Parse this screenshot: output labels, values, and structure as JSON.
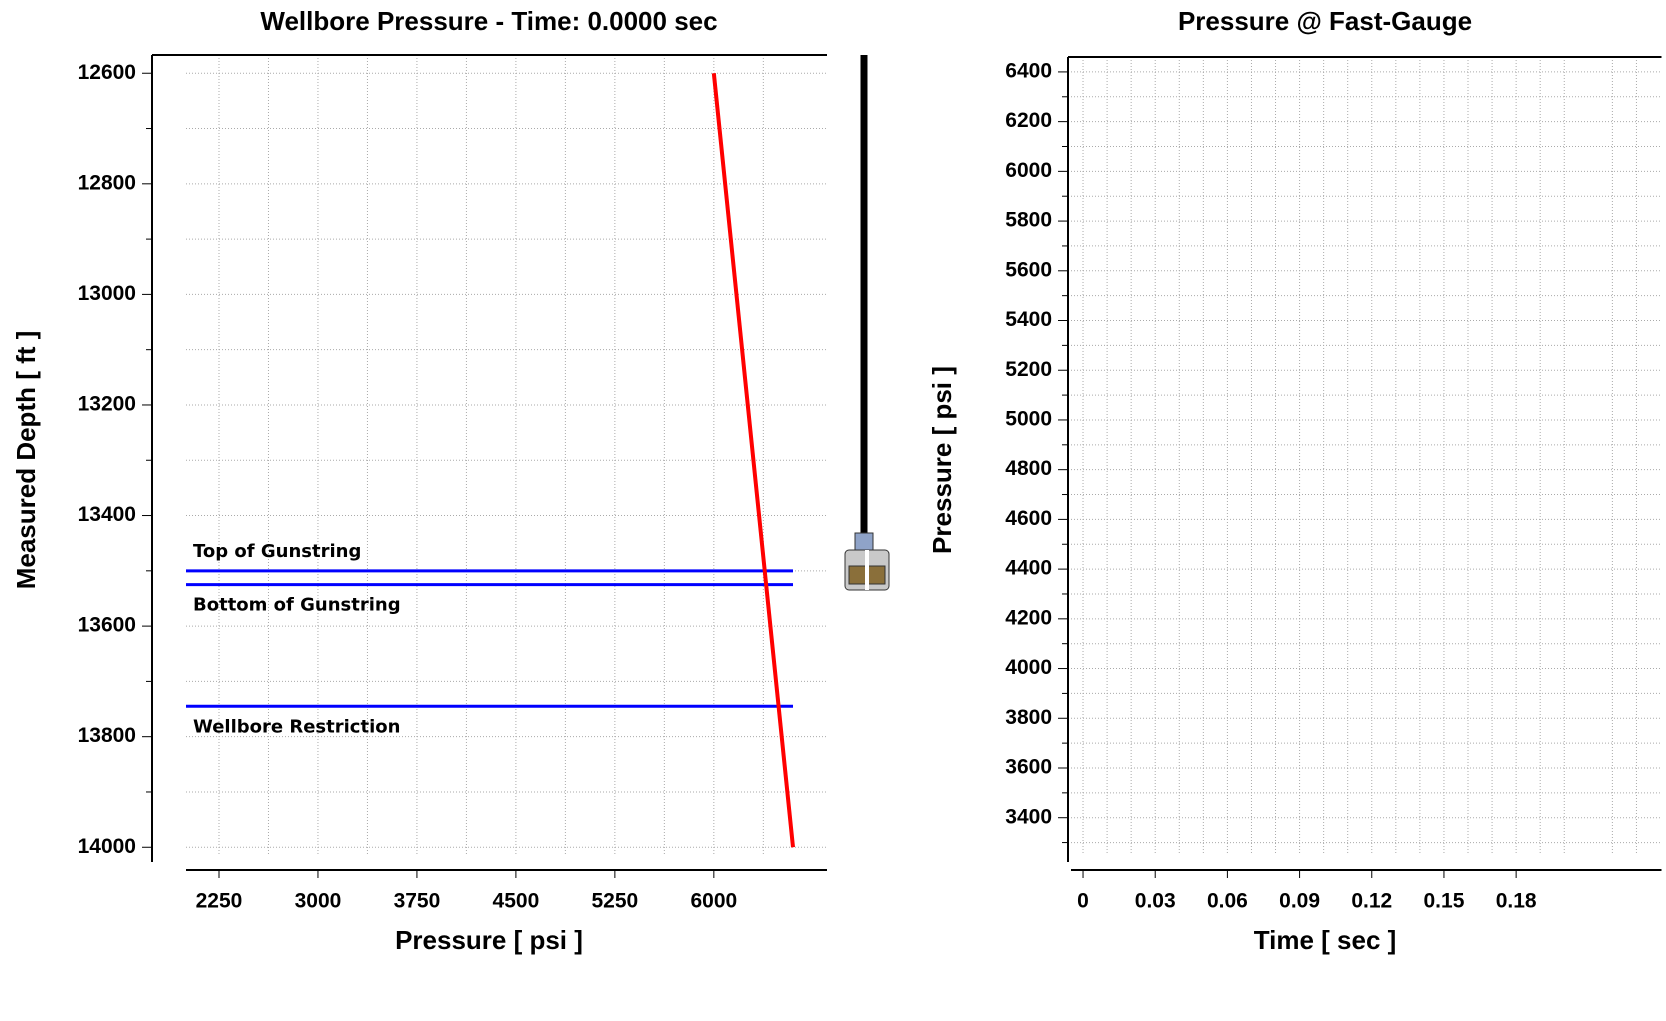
{
  "chart_data": [
    {
      "type": "line",
      "title": "Wellbore Pressure - Time: 0.0000 sec",
      "x_label": "Pressure [ psi ]",
      "y_label": "Measured Depth [ ft ]",
      "xlim": [
        2000,
        6850
      ],
      "xticks": [
        2250,
        3000,
        3750,
        4500,
        5250,
        6000
      ],
      "ylim": [
        12567,
        14014
      ],
      "yticks": [
        12600,
        12800,
        13000,
        13200,
        13400,
        13600,
        13800,
        14000
      ],
      "y_inverted": true,
      "grid": true,
      "points": {
        "x": [
          6000,
          6600
        ],
        "y": [
          12600,
          14000
        ],
        "color": "#ff0000"
      },
      "reference_lines": [
        {
          "label": "Top of Gunstring",
          "value": 13500,
          "color": "#0000ff"
        },
        {
          "label": "Bottom of Gunstring",
          "value": 13525,
          "color": "#0000ff"
        },
        {
          "label": "Wellbore Restriction",
          "value": 13745,
          "color": "#0000ff"
        }
      ]
    },
    {
      "type": "empty",
      "title": "Pressure @ Fast-Gauge",
      "x_label": "Time [ sec ]",
      "y_label": "Pressure [ psi ]",
      "xlim": [
        -0.005,
        0.24
      ],
      "xticks": [
        0,
        0.03,
        0.06,
        0.09,
        0.12,
        0.15,
        0.18
      ],
      "ylim": [
        3250,
        6460
      ],
      "yticks": [
        3400,
        3600,
        3800,
        4000,
        4200,
        4400,
        4600,
        4800,
        5000,
        5200,
        5400,
        5600,
        5800,
        6000,
        6200,
        6400
      ],
      "grid": true
    }
  ]
}
